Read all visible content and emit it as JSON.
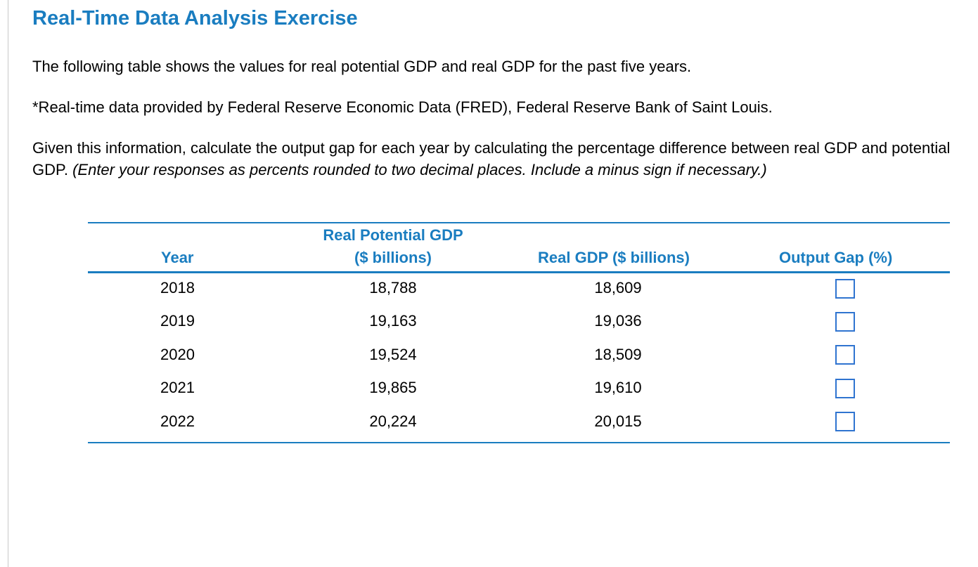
{
  "title": "Real-Time Data Analysis Exercise",
  "intro": "The following table shows the values for real potential GDP and real GDP for the past five years.",
  "source_note": "*Real-time data provided by Federal Reserve Economic Data (FRED), Federal Reserve Bank of Saint Louis.",
  "instruction": {
    "text": "Given this information, calculate the output gap for each year by calculating the percentage difference between real GDP and potential GDP.",
    "italic": "(Enter your responses as percents rounded to two decimal places. Include a minus sign if necessary.)"
  },
  "table": {
    "headers": {
      "year": "Year",
      "potential_line1": "Real Potential GDP",
      "potential_line2": "($ billions)",
      "real": "Real GDP ($ billions)",
      "gap": "Output Gap (%)"
    },
    "rows": [
      {
        "year": "2018",
        "potential": "18,788",
        "real": "18,609",
        "gap": ""
      },
      {
        "year": "2019",
        "potential": "19,163",
        "real": "19,036",
        "gap": ""
      },
      {
        "year": "2020",
        "potential": "19,524",
        "real": "18,509",
        "gap": ""
      },
      {
        "year": "2021",
        "potential": "19,865",
        "real": "19,610",
        "gap": ""
      },
      {
        "year": "2022",
        "potential": "20,224",
        "real": "20,015",
        "gap": ""
      }
    ]
  },
  "colors": {
    "accent": "#1a7dc0",
    "input_border": "#2f74d0"
  }
}
